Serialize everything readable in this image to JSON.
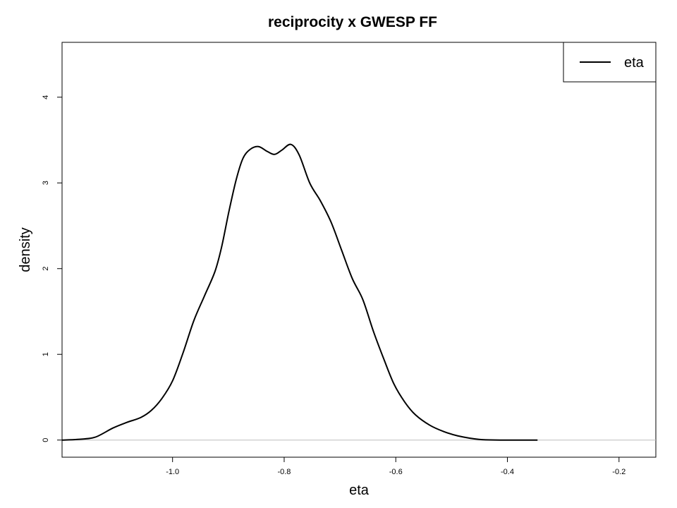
{
  "chart_data": {
    "type": "line",
    "title": "reciprocity x GWESP FF",
    "xlabel": "eta",
    "ylabel": "density",
    "xlim": [
      -1.198,
      -0.134
    ],
    "ylim": [
      -0.2,
      4.64
    ],
    "xticks": [
      -1.0,
      -0.8,
      -0.6,
      -0.4,
      -0.2
    ],
    "xtick_labels": [
      "-1.0",
      "-0.8",
      "-0.6",
      "-0.4",
      "-0.2"
    ],
    "yticks": [
      0,
      1,
      2,
      3,
      4
    ],
    "ytick_labels": [
      "0",
      "1",
      "2",
      "3",
      "4"
    ],
    "grid": false,
    "baseline": 0,
    "baseline_color": "#bebebe",
    "legend": {
      "position": "top-right",
      "entries": [
        "eta"
      ]
    },
    "series": [
      {
        "name": "eta",
        "color": "#000000",
        "x": [
          -1.198,
          -1.17,
          -1.139,
          -1.107,
          -1.082,
          -1.057,
          -1.038,
          -1.019,
          -1.0,
          -0.981,
          -0.962,
          -0.943,
          -0.924,
          -0.912,
          -0.899,
          -0.886,
          -0.874,
          -0.861,
          -0.846,
          -0.83,
          -0.817,
          -0.804,
          -0.788,
          -0.773,
          -0.754,
          -0.735,
          -0.716,
          -0.697,
          -0.678,
          -0.659,
          -0.64,
          -0.621,
          -0.603,
          -0.584,
          -0.565,
          -0.539,
          -0.514,
          -0.489,
          -0.451,
          -0.413,
          -0.346
        ],
        "y": [
          0,
          0.008,
          0.033,
          0.14,
          0.206,
          0.263,
          0.346,
          0.486,
          0.691,
          1.021,
          1.391,
          1.679,
          1.967,
          2.255,
          2.667,
          3.037,
          3.284,
          3.391,
          3.424,
          3.366,
          3.333,
          3.383,
          3.449,
          3.325,
          2.996,
          2.79,
          2.543,
          2.214,
          1.885,
          1.638,
          1.267,
          0.938,
          0.65,
          0.444,
          0.296,
          0.173,
          0.099,
          0.049,
          0.008,
          0,
          0
        ]
      }
    ]
  }
}
